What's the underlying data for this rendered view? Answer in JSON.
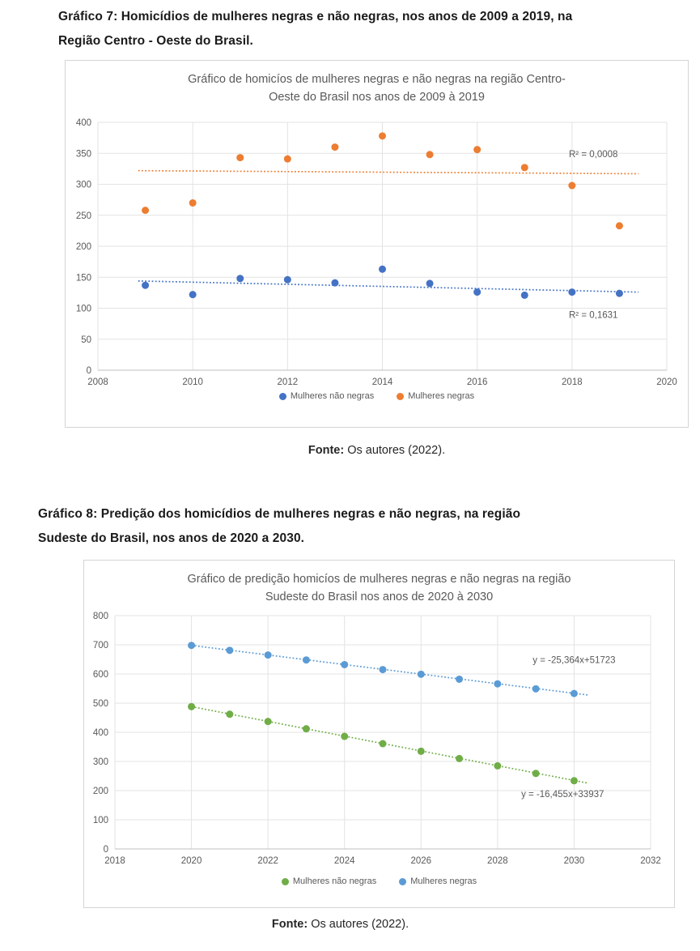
{
  "figure7": {
    "heading_line1": "Gráfico 7: Homicídios de mulheres negras e não negras, nos anos de 2009 a 2019, na",
    "heading_line2": "Região Centro - Oeste do Brasil.",
    "fonte_label": "Fonte:",
    "fonte_text": " Os autores (2022)."
  },
  "figure8": {
    "heading_line1": "Gráfico 8: Predição dos homicídios de mulheres negras e não negras, na região",
    "heading_line2": "Sudeste do Brasil, nos anos de 2020 a 2030.",
    "fonte_label": "Fonte:",
    "fonte_text": " Os autores (2022)."
  },
  "chart_data": [
    {
      "type": "scatter",
      "title": "Gráfico de homicíos de mulheres negras e não negras na região Centro-Oeste do Brasil nos anos de 2009 à 2019",
      "title_line1": "Gráfico de homicíos de mulheres negras e não negras na região Centro-",
      "title_line2": "Oeste do Brasil nos anos de 2009 à 2019",
      "x": [
        2009,
        2010,
        2011,
        2012,
        2013,
        2014,
        2015,
        2016,
        2017,
        2018,
        2019
      ],
      "series": [
        {
          "name": "Mulheres não negras",
          "color": "#4472C4",
          "values": [
            137,
            122,
            148,
            146,
            141,
            163,
            140,
            126,
            121,
            126,
            124
          ]
        },
        {
          "name": "Mulheres negras",
          "color": "#ED7D31",
          "values": [
            258,
            270,
            343,
            341,
            360,
            378,
            348,
            356,
            327,
            298,
            233
          ]
        }
      ],
      "trendlines": [
        {
          "series": "Mulheres negras",
          "color": "#ED7D31",
          "x1": 2008.85,
          "y1": 322,
          "x2": 2019.4,
          "y2": 317
        },
        {
          "series": "Mulheres não negras",
          "color": "#4472C4",
          "x1": 2008.85,
          "y1": 144,
          "x2": 2019.4,
          "y2": 126
        }
      ],
      "annotations": [
        {
          "text": "R² = 0,0008",
          "x": 2018.45,
          "y": 344
        },
        {
          "text": "R² = 0,1631",
          "x": 2018.45,
          "y": 84
        }
      ],
      "legend": [
        {
          "label": "Mulheres não negras",
          "color": "#4472C4"
        },
        {
          "label": "Mulheres negras",
          "color": "#ED7D31"
        }
      ],
      "xlabel": "",
      "ylabel": "",
      "xlim": [
        2008,
        2020
      ],
      "ylim": [
        0,
        400
      ],
      "xticks": [
        2008,
        2010,
        2012,
        2014,
        2016,
        2018,
        2020
      ],
      "yticks": [
        0,
        50,
        100,
        150,
        200,
        250,
        300,
        350,
        400
      ],
      "grid": true,
      "legend_position": "bottom",
      "grid_color": "#e3e3e3",
      "axis_line_color": "#bfbfbf",
      "axis_text_color": "#595959"
    },
    {
      "type": "scatter",
      "title": "Gráfico de predição homicíos de mulheres negras e não negras na região Sudeste do Brasil nos anos de 2020 à 2030",
      "title_line1": "Gráfico de predição homicíos de mulheres negras e não negras na região",
      "title_line2": "Sudeste do Brasil nos anos de 2020 à 2030",
      "x": [
        2020,
        2021,
        2022,
        2023,
        2024,
        2025,
        2026,
        2027,
        2028,
        2029,
        2030
      ],
      "series": [
        {
          "name": "Mulheres não negras",
          "color": "#70AD47",
          "values": [
            488,
            462,
            437,
            412,
            386,
            361,
            335,
            310,
            285,
            259,
            234
          ]
        },
        {
          "name": "Mulheres negras",
          "color": "#5B9BD5",
          "values": [
            698,
            681,
            665,
            648,
            632,
            615,
            599,
            582,
            566,
            549,
            533
          ]
        }
      ],
      "trendlines": [
        {
          "series": "Mulheres negras",
          "color": "#5B9BD5",
          "x1": 2020,
          "y1": 698,
          "x2": 2030.35,
          "y2": 528
        },
        {
          "series": "Mulheres não negras",
          "color": "#70AD47",
          "x1": 2020,
          "y1": 488,
          "x2": 2030.35,
          "y2": 226
        }
      ],
      "annotations": [
        {
          "text": "y = -25,364x+51723",
          "x": 2030.0,
          "y": 638
        },
        {
          "text": "y = -16,455x+33937",
          "x": 2029.7,
          "y": 178
        }
      ],
      "legend": [
        {
          "label": "Mulheres não negras",
          "color": "#70AD47"
        },
        {
          "label": "Mulheres negras",
          "color": "#5B9BD5"
        }
      ],
      "xlabel": "",
      "ylabel": "",
      "xlim": [
        2018,
        2032
      ],
      "ylim": [
        0,
        800
      ],
      "xticks": [
        2018,
        2020,
        2022,
        2024,
        2026,
        2028,
        2030,
        2032
      ],
      "yticks": [
        0,
        100,
        200,
        300,
        400,
        500,
        600,
        700,
        800
      ],
      "grid": true,
      "legend_position": "bottom",
      "grid_color": "#e3e3e3",
      "axis_line_color": "#bfbfbf",
      "axis_text_color": "#595959"
    }
  ]
}
